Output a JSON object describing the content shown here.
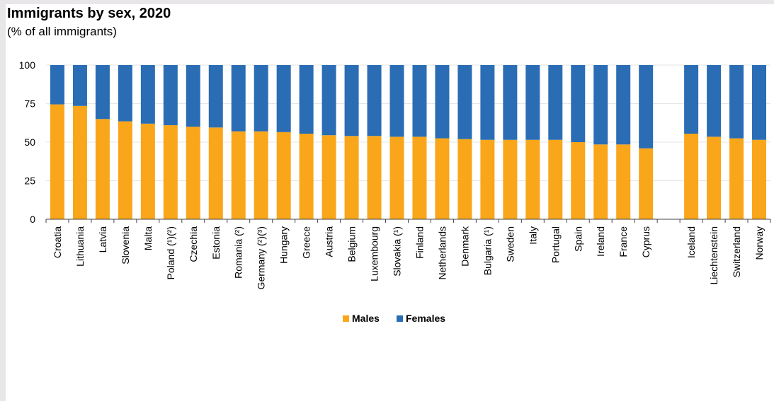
{
  "title": "Immigrants by sex, 2020",
  "subtitle": "(% of all immigrants)",
  "colors": {
    "males": "#f9a61a",
    "females": "#2a6db4",
    "axis": "#444444",
    "gridline": "#e6e6e6"
  },
  "chart_data": {
    "type": "bar",
    "stacked": true,
    "title": "Immigrants by sex, 2020",
    "subtitle": "(% of all immigrants)",
    "xlabel": "",
    "ylabel": "",
    "ylim": [
      0,
      100
    ],
    "yticks": [
      0,
      25,
      50,
      75,
      100
    ],
    "grid": true,
    "legend_position": "bottom-center",
    "categories": [
      "Croatia",
      "Lithuania",
      "Latvia",
      "Slovenia",
      "Malta",
      "Poland (¹)(²)",
      "Czechia",
      "Estonia",
      "Romania (²)",
      "Germany (²)(³)",
      "Hungary",
      "Greece",
      "Austria",
      "Belgium",
      "Luxembourg",
      "Slovakia (¹)",
      "Finland",
      "Netherlands",
      "Denmark",
      "Bulgaria (¹)",
      "Sweden",
      "Italy",
      "Portugal",
      "Spain",
      "Ireland",
      "France",
      "Cyprus",
      "",
      "Iceland",
      "Liechtenstein",
      "Switzerland",
      "Norway"
    ],
    "series": [
      {
        "name": "Males",
        "values": [
          74.5,
          73.5,
          65,
          63.5,
          62,
          61,
          60,
          59.5,
          57,
          57,
          56.5,
          55.5,
          54.5,
          54,
          54,
          53.5,
          53.5,
          52.5,
          52,
          51.5,
          51.5,
          51.5,
          51.5,
          50,
          48.5,
          48.5,
          46,
          null,
          55.5,
          53.5,
          52.5,
          51.5
        ]
      },
      {
        "name": "Females",
        "values": [
          25.5,
          26.5,
          35,
          36.5,
          38,
          39,
          40,
          40.5,
          43,
          43,
          43.5,
          44.5,
          45.5,
          46,
          46,
          46.5,
          46.5,
          47.5,
          48,
          48.5,
          48.5,
          48.5,
          48.5,
          50,
          51.5,
          51.5,
          54,
          null,
          44.5,
          46.5,
          47.5,
          48.5
        ]
      }
    ]
  }
}
